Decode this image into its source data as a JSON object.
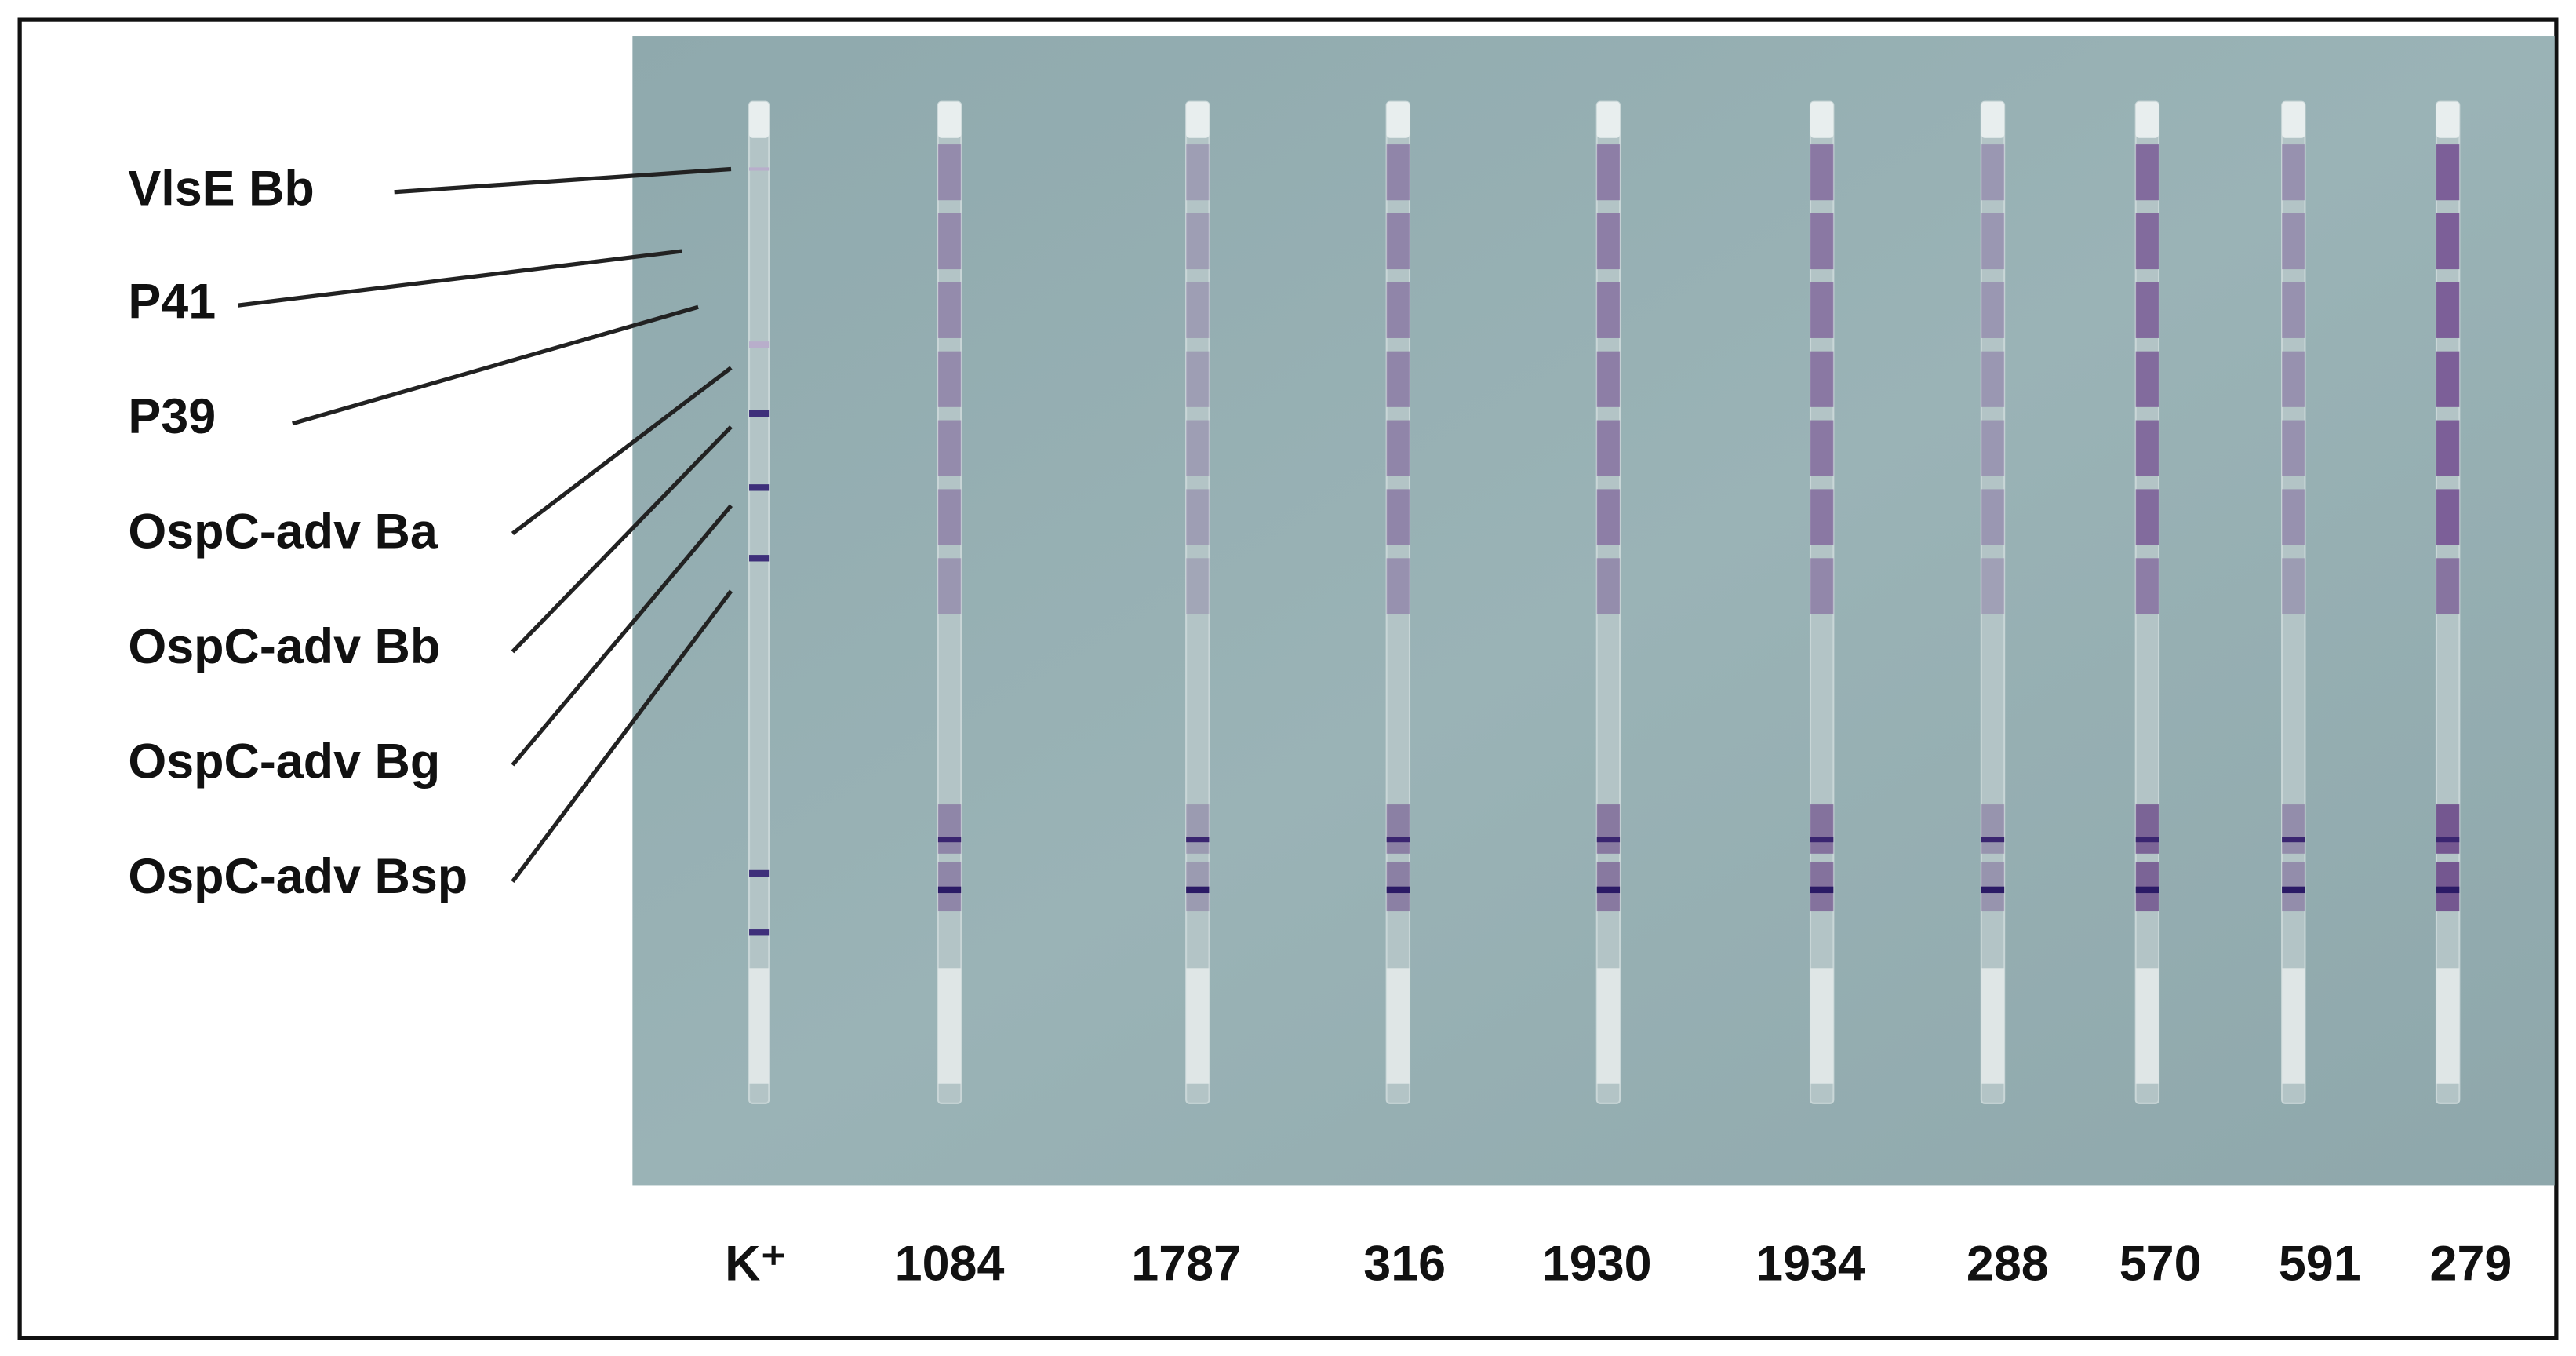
{
  "antigen_labels": [
    "VlsE Bb",
    "P41",
    "P39",
    "OspC-adv Ba",
    "OspC-adv Bb",
    "OspC-adv Bg",
    "OspC-adv Bsp"
  ],
  "strip_labels": [
    "K⁺",
    "1084",
    "1787",
    "316",
    "1930",
    "1934",
    "288",
    "570",
    "591",
    "279"
  ]
}
